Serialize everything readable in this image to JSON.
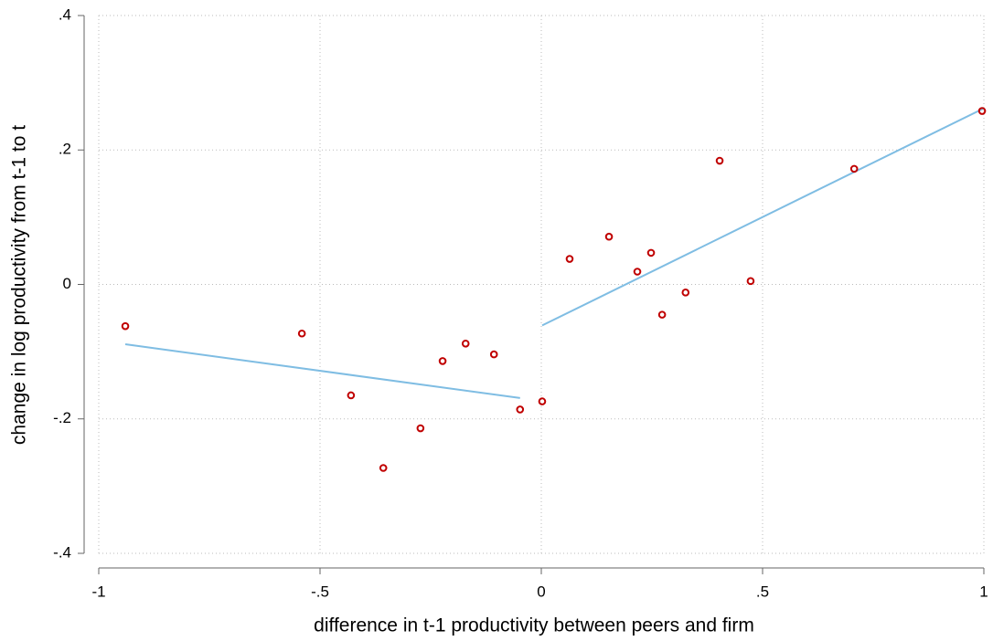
{
  "chart_data": {
    "type": "scatter",
    "x_label": "difference in t-1 productivity between peers and firm",
    "y_label": "change in log productivity from t-1 to t",
    "points": {
      "color": "#c00000",
      "x": [
        -0.94,
        -0.541,
        -0.43,
        -0.357,
        -0.273,
        -0.223,
        -0.171,
        -0.107,
        -0.048,
        0.002,
        0.064,
        0.153,
        0.217,
        0.248,
        0.273,
        0.326,
        0.403,
        0.473,
        0.707,
        0.996
      ],
      "values": [
        -0.062,
        -0.073,
        -0.165,
        -0.273,
        -0.214,
        -0.114,
        -0.088,
        -0.104,
        -0.186,
        -0.174,
        0.038,
        0.071,
        0.019,
        0.047,
        -0.045,
        -0.012,
        0.184,
        0.005,
        0.172,
        0.258
      ]
    },
    "fits": [
      {
        "color": "#7fbde3",
        "x": [
          -0.94,
          -0.048
        ],
        "values": [
          -0.089,
          -0.169
        ]
      },
      {
        "color": "#7fbde3",
        "x": [
          0.002,
          1.0
        ],
        "values": [
          -0.061,
          0.262
        ]
      }
    ],
    "xlim": [
      -1,
      1
    ],
    "xticks": [
      -1,
      {
        "value": -0.5,
        "label": "-.5"
      },
      0,
      {
        "value": 0.5,
        "label": ".5"
      },
      1
    ],
    "ylim": [
      -0.4,
      0.4
    ],
    "yticks": [
      {
        "value": -0.4,
        "label": "-.4"
      },
      {
        "value": -0.2,
        "label": "-.2"
      },
      0,
      {
        "value": 0.2,
        "label": ".2"
      },
      {
        "value": 0.4,
        "label": ".4"
      }
    ],
    "grid": true
  }
}
